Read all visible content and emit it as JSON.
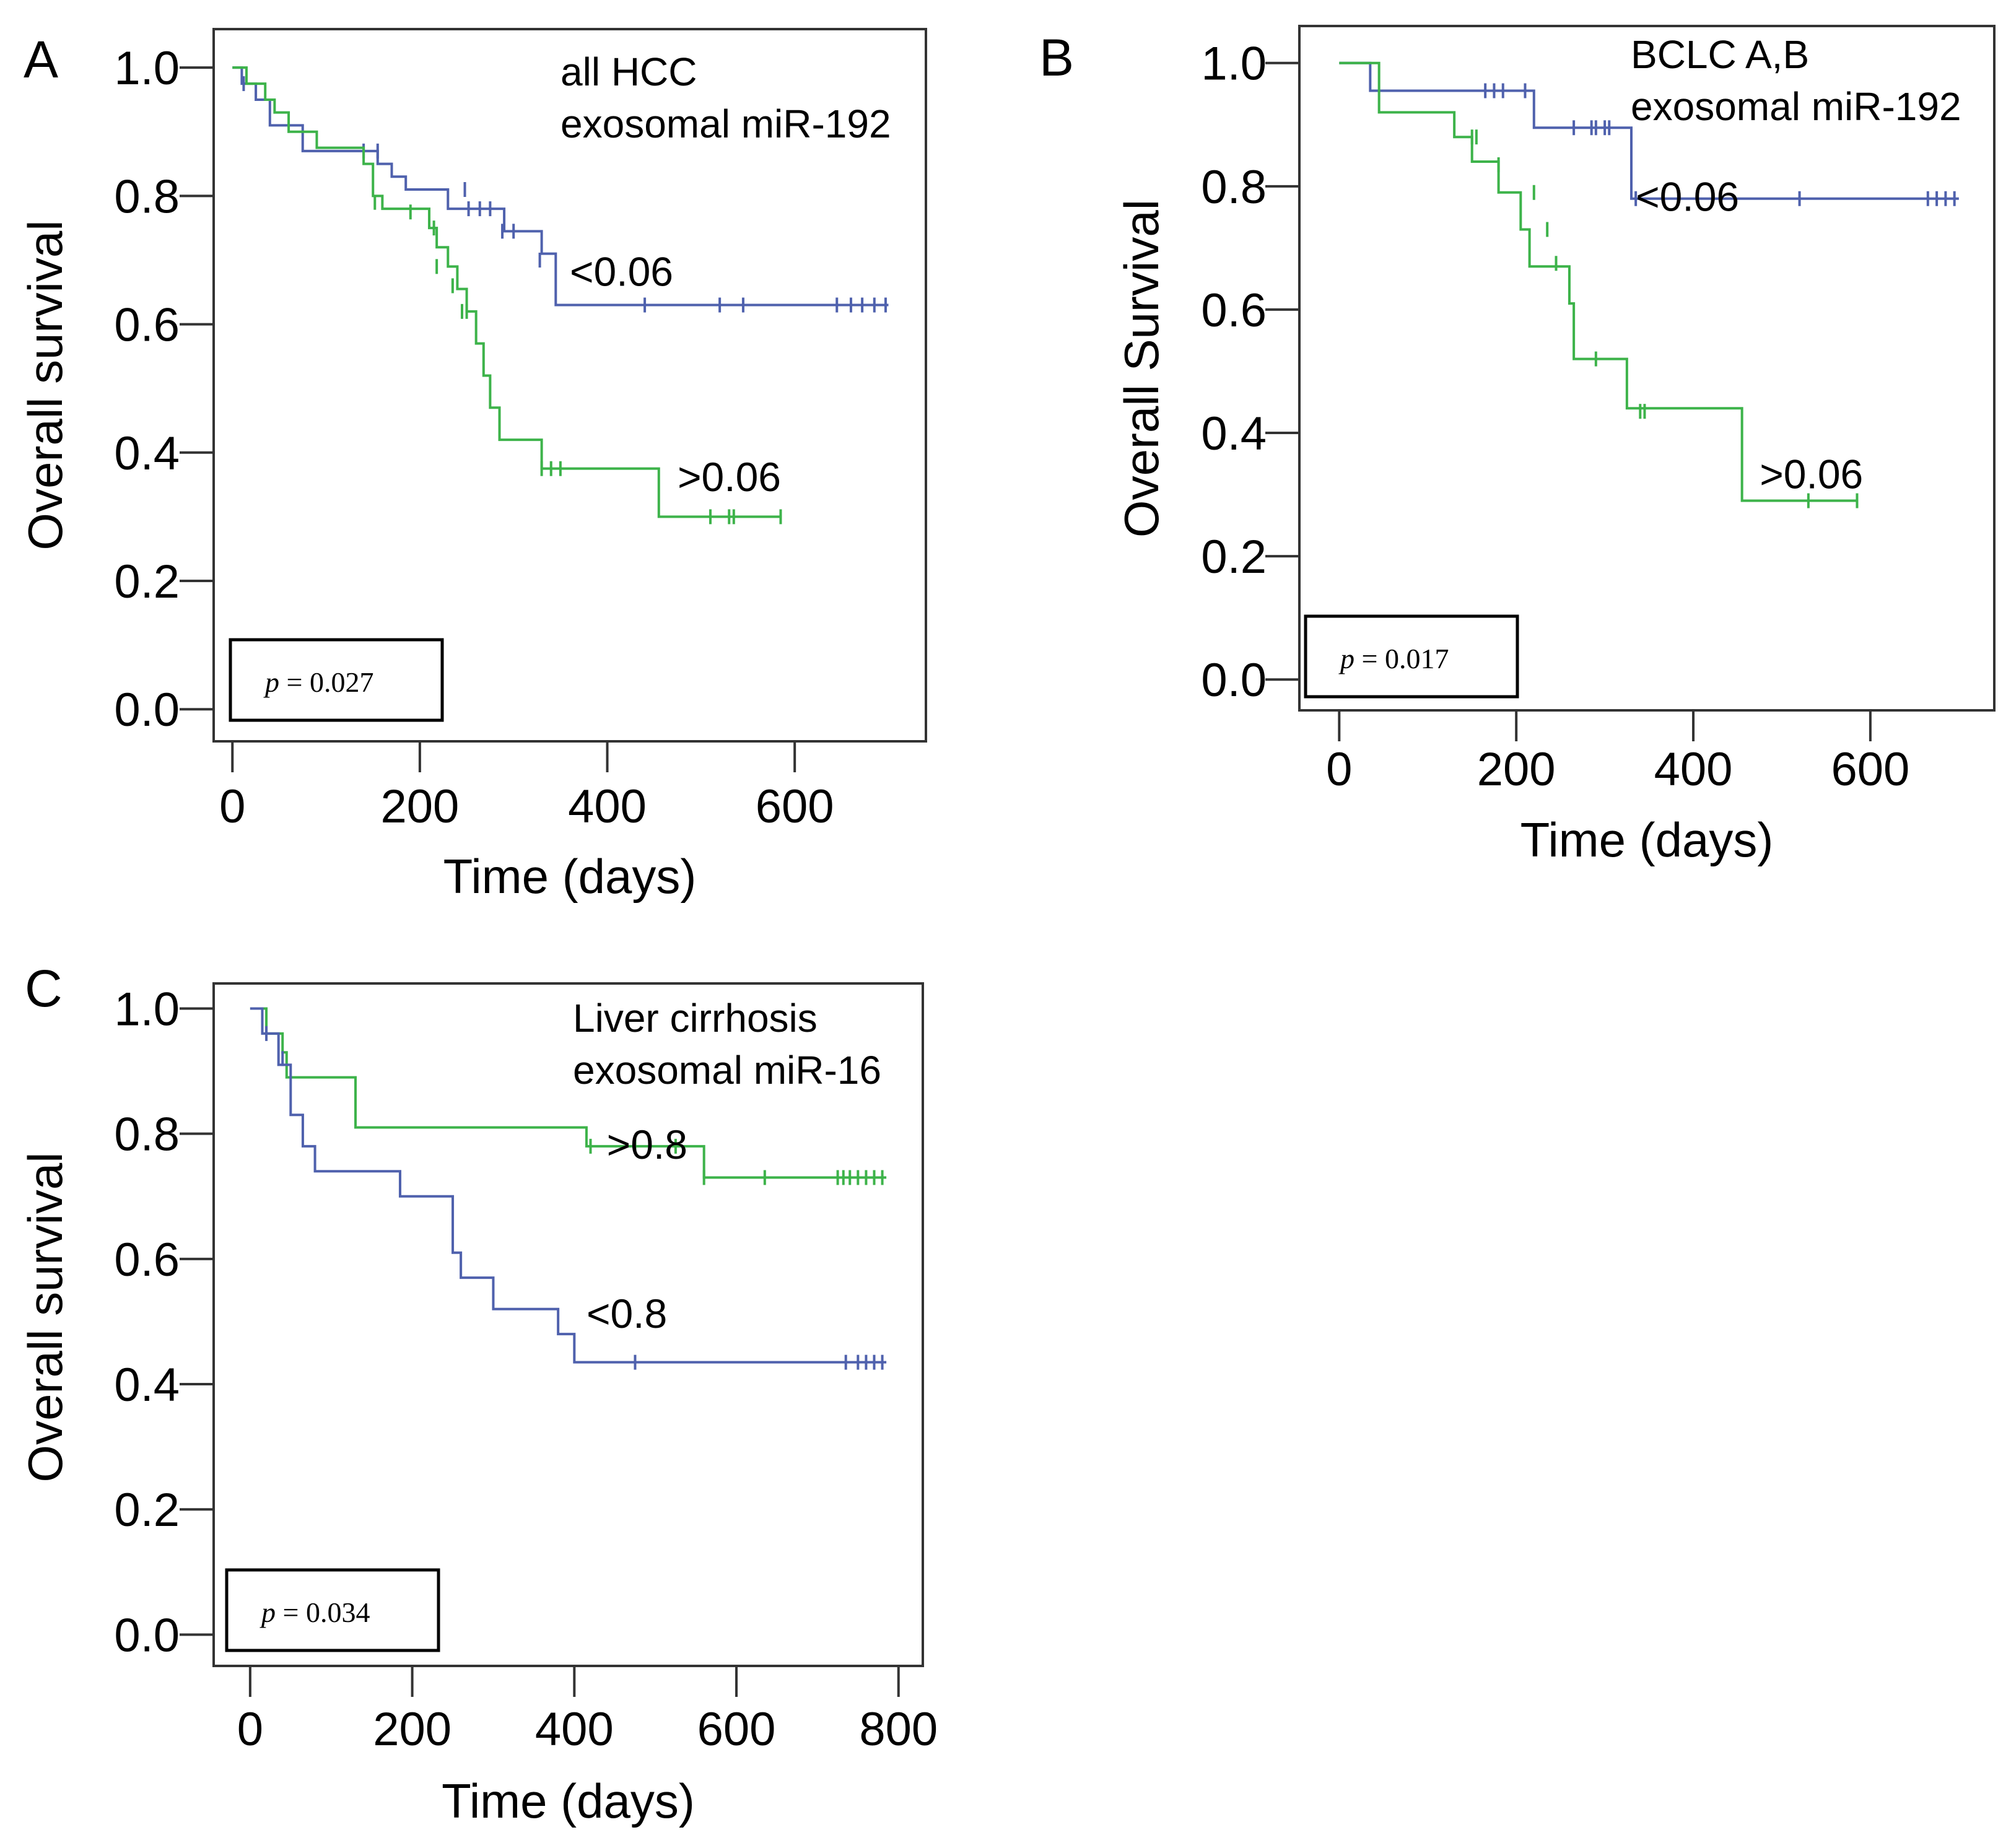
{
  "figure": {
    "panels": [
      {
        "id": "A",
        "letter": "A",
        "legend_lines": [
          "all HCC",
          "exosomal miR-192"
        ],
        "p_prefix": "p",
        "p_rest": " = 0.027",
        "chart_data": {
          "type": "line",
          "title": "all HCC exosomal miR-192",
          "xlabel": "Time (days)",
          "ylabel": "Overall survival",
          "xlim": [
            -20,
            740
          ],
          "ylim": [
            -0.05,
            1.06
          ],
          "xticks": [
            0,
            200,
            400,
            600
          ],
          "xtick_labels": [
            "0",
            "200",
            "400",
            "600"
          ],
          "yticks": [
            0,
            0.2,
            0.4,
            0.6,
            0.8,
            1.0
          ],
          "ytick_labels": [
            "0.0",
            "0.2",
            "0.4",
            "0.6",
            "0.8",
            "1.0"
          ],
          "p_value": "p = 0.027",
          "series": [
            {
              "name": "<0.06",
              "color": "#4f61ad",
              "label": "<0.06",
              "label_at": [
                360,
                0.66
              ],
              "steps": [
                [
                  0,
                  1.0
                ],
                [
                  10,
                  0.975
                ],
                [
                  25,
                  0.95
                ],
                [
                  40,
                  0.91
                ],
                [
                  75,
                  0.87
                ],
                [
                  155,
                  0.85
                ],
                [
                  170,
                  0.83
                ],
                [
                  185,
                  0.81
                ],
                [
                  220,
                  0.81
                ],
                [
                  230,
                  0.78
                ],
                [
                  280,
                  0.78
                ],
                [
                  290,
                  0.745
                ],
                [
                  320,
                  0.745
                ],
                [
                  330,
                  0.71
                ],
                [
                  345,
                  0.63
                ],
                [
                  700,
                  0.63
                ]
              ],
              "censors": [
                [
                  12,
                  0.975
                ],
                [
                  140,
                  0.87
                ],
                [
                  155,
                  0.87
                ],
                [
                  170,
                  0.84
                ],
                [
                  248,
                  0.81
                ],
                [
                  252,
                  0.78
                ],
                [
                  264,
                  0.78
                ],
                [
                  275,
                  0.78
                ],
                [
                  288,
                  0.745
                ],
                [
                  300,
                  0.745
                ],
                [
                  328,
                  0.7
                ],
                [
                  440,
                  0.63
                ],
                [
                  520,
                  0.63
                ],
                [
                  545,
                  0.63
                ],
                [
                  645,
                  0.63
                ],
                [
                  660,
                  0.63
                ],
                [
                  672,
                  0.63
                ],
                [
                  685,
                  0.63
                ],
                [
                  697,
                  0.63
                ]
              ]
            },
            {
              "name": ">0.06",
              "color": "#3db34a",
              "label": ">0.06",
              "label_at": [
                475,
                0.34
              ],
              "steps": [
                [
                  0,
                  1.0
                ],
                [
                  15,
                  0.975
                ],
                [
                  35,
                  0.95
                ],
                [
                  45,
                  0.93
                ],
                [
                  60,
                  0.9
                ],
                [
                  90,
                  0.875
                ],
                [
                  140,
                  0.85
                ],
                [
                  150,
                  0.8
                ],
                [
                  160,
                  0.78
                ],
                [
                  210,
                  0.75
                ],
                [
                  218,
                  0.72
                ],
                [
                  230,
                  0.69
                ],
                [
                  240,
                  0.655
                ],
                [
                  250,
                  0.62
                ],
                [
                  260,
                  0.57
                ],
                [
                  268,
                  0.52
                ],
                [
                  275,
                  0.47
                ],
                [
                  285,
                  0.42
                ],
                [
                  330,
                  0.375
                ],
                [
                  455,
                  0.3
                ],
                [
                  585,
                  0.3
                ]
              ],
              "censors": [
                [
                  152,
                  0.79
                ],
                [
                  190,
                  0.775
                ],
                [
                  215,
                  0.75
                ],
                [
                  218,
                  0.69
                ],
                [
                  235,
                  0.66
                ],
                [
                  245,
                  0.62
                ],
                [
                  250,
                  0.62
                ],
                [
                  285,
                  0.46
                ],
                [
                  330,
                  0.375
                ],
                [
                  340,
                  0.375
                ],
                [
                  350,
                  0.375
                ],
                [
                  510,
                  0.3
                ],
                [
                  530,
                  0.3
                ],
                [
                  535,
                  0.3
                ],
                [
                  585,
                  0.3
                ]
              ]
            }
          ]
        }
      },
      {
        "id": "B",
        "letter": "B",
        "legend_lines": [
          "BCLC A,B",
          "exosomal miR-192"
        ],
        "p_prefix": "p",
        "p_rest": " = 0.017",
        "chart_data": {
          "type": "line",
          "title": "BCLC A,B exosomal miR-192",
          "xlabel": "Time (days)",
          "ylabel": "Overall Survival",
          "xlim": [
            -45,
            740
          ],
          "ylim": [
            -0.05,
            1.06
          ],
          "xticks": [
            0,
            200,
            400,
            600
          ],
          "xtick_labels": [
            "0",
            "200",
            "400",
            "600"
          ],
          "yticks": [
            0,
            0.2,
            0.4,
            0.6,
            0.8,
            1.0
          ],
          "ytick_labels": [
            "0.0",
            "0.2",
            "0.4",
            "0.6",
            "0.8",
            "1.0"
          ],
          "p_value": "p = 0.017",
          "series": [
            {
              "name": "<0.06",
              "color": "#4f61ad",
              "label": "<0.06",
              "label_at": [
                335,
                0.76
              ],
              "steps": [
                [
                  0,
                  1.0
                ],
                [
                  35,
                  0.955
                ],
                [
                  215,
                  0.955
                ],
                [
                  220,
                  0.895
                ],
                [
                  325,
                  0.895
                ],
                [
                  330,
                  0.78
                ],
                [
                  700,
                  0.78
                ]
              ],
              "censors": [
                [
                  165,
                  0.955
                ],
                [
                  175,
                  0.955
                ],
                [
                  185,
                  0.955
                ],
                [
                  210,
                  0.955
                ],
                [
                  265,
                  0.895
                ],
                [
                  285,
                  0.895
                ],
                [
                  290,
                  0.895
                ],
                [
                  300,
                  0.895
                ],
                [
                  305,
                  0.895
                ],
                [
                  335,
                  0.78
                ],
                [
                  520,
                  0.78
                ],
                [
                  665,
                  0.78
                ],
                [
                  675,
                  0.78
                ],
                [
                  685,
                  0.78
                ],
                [
                  695,
                  0.78
                ]
              ]
            },
            {
              "name": ">0.06",
              "color": "#3db34a",
              "label": ">0.06",
              "label_at": [
                475,
                0.31
              ],
              "steps": [
                [
                  0,
                  1.0
                ],
                [
                  45,
                  0.92
                ],
                [
                  130,
                  0.88
                ],
                [
                  150,
                  0.84
                ],
                [
                  180,
                  0.79
                ],
                [
                  205,
                  0.73
                ],
                [
                  215,
                  0.67
                ],
                [
                  260,
                  0.61
                ],
                [
                  265,
                  0.52
                ],
                [
                  325,
                  0.44
                ],
                [
                  455,
                  0.29
                ],
                [
                  585,
                  0.29
                ]
              ],
              "censors": [
                [
                  150,
                  0.88
                ],
                [
                  155,
                  0.88
                ],
                [
                  180,
                  0.835
                ],
                [
                  220,
                  0.79
                ],
                [
                  235,
                  0.73
                ],
                [
                  245,
                  0.675
                ],
                [
                  290,
                  0.52
                ],
                [
                  340,
                  0.435
                ],
                [
                  345,
                  0.435
                ],
                [
                  530,
                  0.29
                ],
                [
                  585,
                  0.29
                ]
              ]
            }
          ]
        }
      },
      {
        "id": "C",
        "letter": "C",
        "legend_lines": [
          "Liver cirrhosis",
          "exosomal miR-16"
        ],
        "p_prefix": "p",
        "p_rest": " = 0.034",
        "chart_data": {
          "type": "line",
          "title": "Liver cirrhosis exosomal miR-16",
          "xlabel": "Time (days)",
          "ylabel": "Overall survival",
          "xlim": [
            -45,
            830
          ],
          "ylim": [
            -0.05,
            1.04
          ],
          "xticks": [
            0,
            200,
            400,
            600,
            800
          ],
          "xtick_labels": [
            "0",
            "200",
            "400",
            "600",
            "800"
          ],
          "yticks": [
            0,
            0.2,
            0.4,
            0.6,
            0.8,
            1.0
          ],
          "ytick_labels": [
            "0.0",
            "0.2",
            "0.4",
            "0.6",
            "0.8",
            "1.0"
          ],
          "p_value": "p = 0.034",
          "series": [
            {
              "name": ">0.8",
              "color": "#3db34a",
              "label": ">0.8",
              "label_at": [
                440,
                0.76
              ],
              "steps": [
                [
                  0,
                  1.0
                ],
                [
                  20,
                  0.96
                ],
                [
                  40,
                  0.93
                ],
                [
                  45,
                  0.89
                ],
                [
                  130,
                  0.81
                ],
                [
                  415,
                  0.78
                ],
                [
                  560,
                  0.73
                ],
                [
                  785,
                  0.73
                ]
              ],
              "censors": [
                [
                  420,
                  0.78
                ],
                [
                  475,
                  0.78
                ],
                [
                  525,
                  0.78
                ],
                [
                  560,
                  0.73
                ],
                [
                  635,
                  0.73
                ],
                [
                  725,
                  0.73
                ],
                [
                  732,
                  0.73
                ],
                [
                  740,
                  0.73
                ],
                [
                  750,
                  0.73
                ],
                [
                  760,
                  0.73
                ],
                [
                  770,
                  0.73
                ],
                [
                  780,
                  0.73
                ]
              ]
            },
            {
              "name": "<0.8",
              "color": "#4f61ad",
              "label": "<0.8",
              "label_at": [
                415,
                0.49
              ],
              "steps": [
                [
                  0,
                  1.0
                ],
                [
                  15,
                  0.96
                ],
                [
                  35,
                  0.91
                ],
                [
                  50,
                  0.83
                ],
                [
                  65,
                  0.78
                ],
                [
                  80,
                  0.74
                ],
                [
                  185,
                  0.7
                ],
                [
                  250,
                  0.61
                ],
                [
                  260,
                  0.57
                ],
                [
                  300,
                  0.52
                ],
                [
                  380,
                  0.48
                ],
                [
                  400,
                  0.435
                ],
                [
                  785,
                  0.435
                ]
              ],
              "censors": [
                [
                  20,
                  0.96
                ],
                [
                  40,
                  0.92
                ],
                [
                  475,
                  0.435
                ],
                [
                  735,
                  0.435
                ],
                [
                  750,
                  0.435
                ],
                [
                  760,
                  0.435
                ],
                [
                  770,
                  0.435
                ],
                [
                  780,
                  0.435
                ]
              ]
            }
          ]
        }
      }
    ]
  }
}
